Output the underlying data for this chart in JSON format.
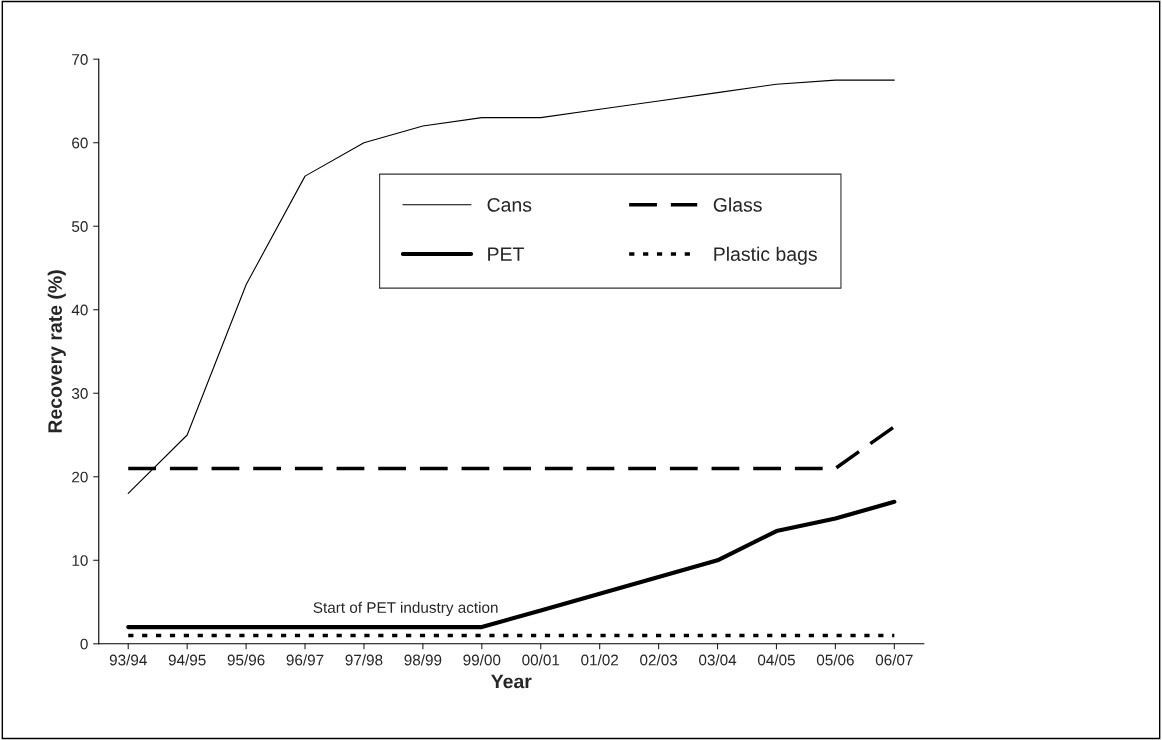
{
  "chart_data": {
    "type": "line",
    "xlabel": "Year",
    "ylabel": "Recovery rate (%)",
    "categories": [
      "93/94",
      "94/95",
      "95/96",
      "96/97",
      "97/98",
      "98/99",
      "99/00",
      "00/01",
      "01/02",
      "02/03",
      "03/04",
      "04/05",
      "05/06",
      "06/07"
    ],
    "series": [
      {
        "name": "Cans",
        "color": "#000000",
        "line_style": "solid",
        "values": [
          18,
          25,
          43,
          56,
          60,
          62,
          63,
          63,
          64,
          65,
          66,
          67,
          67.5,
          67.5
        ]
      },
      {
        "name": "Glass",
        "color": "#000000",
        "line_style": "dashed",
        "values": [
          21,
          21,
          21,
          21,
          21,
          21,
          21,
          21,
          21,
          21,
          21,
          21,
          21,
          26
        ]
      },
      {
        "name": "PET",
        "color": "#000000",
        "line_style": "solid",
        "values": [
          2,
          2,
          2,
          2,
          2,
          2,
          2,
          4,
          6,
          8,
          10,
          13.5,
          15,
          17
        ]
      },
      {
        "name": "Plastic bags",
        "color": "#000000",
        "line_style": "dotted",
        "values": [
          1,
          1,
          1,
          1,
          1,
          1,
          1,
          1,
          1,
          1,
          1,
          1,
          1,
          1
        ]
      }
    ],
    "ylim": [
      0,
      70
    ],
    "yticks": [
      0,
      10,
      20,
      30,
      40,
      50,
      60,
      70
    ],
    "grid": false,
    "legend": "top",
    "marker": "none",
    "annotations": [
      {
        "text": "Start of PET industry action",
        "x": "99/00",
        "y": 2
      }
    ]
  }
}
